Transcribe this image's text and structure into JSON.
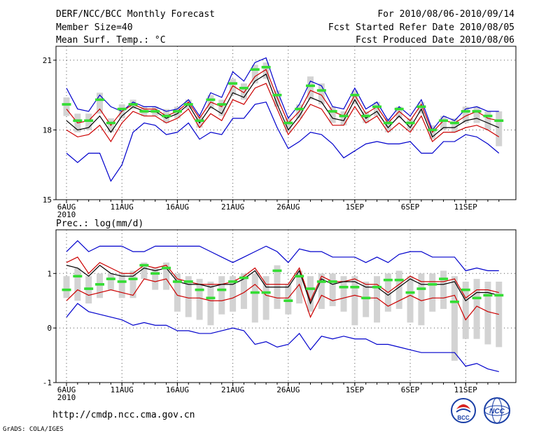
{
  "header": {
    "title": "DERF/NCC/BCC Monthly Forecast",
    "member_size": "Member Size=40",
    "variable_1": "Mean Surf. Temp.: °C",
    "period": "For 2010/08/06-2010/09/14",
    "start_date": "Fcst Started Refer Date 2010/08/05",
    "produced_date": "Fcst Produced Date 2010/08/06"
  },
  "footer": {
    "url": "http://cmdp.ncc.cma.gov.cn",
    "credit": "GrADS: COLA/IGES",
    "logo_bcc": "BCC",
    "logo_ncc": "NCC"
  },
  "colors": {
    "max_min": "#0000cc",
    "spread": "#cc0000",
    "mean": "#000000",
    "median": "#33dd33",
    "box": "#d3d3d3"
  },
  "chart_data": [
    {
      "type": "box-line",
      "title": "Mean Surf. Temp.: °C",
      "x_ticks": [
        "6AUG",
        "11AUG",
        "16AUG",
        "21AUG",
        "26AUG",
        "1SEP",
        "6SEP",
        "11SEP"
      ],
      "x_tick_days": [
        0,
        5,
        10,
        15,
        20,
        26,
        31,
        36
      ],
      "x_sublabel": "2010",
      "y_ticks": [
        15,
        18,
        21
      ],
      "ylim": [
        15,
        21.6
      ],
      "series": [
        {
          "name": "max",
          "values": [
            19.8,
            18.9,
            18.8,
            19.5,
            19.0,
            18.8,
            19.2,
            19.0,
            19.0,
            18.8,
            18.9,
            19.3,
            18.6,
            19.6,
            19.4,
            20.5,
            20.1,
            20.9,
            21.1,
            19.7,
            18.5,
            19.1,
            20.1,
            19.9,
            19.0,
            18.9,
            19.8,
            18.9,
            19.2,
            18.4,
            19.0,
            18.6,
            19.3,
            18.0,
            18.6,
            18.4,
            18.9,
            19.0,
            18.8,
            18.8
          ]
        },
        {
          "name": "upper",
          "values": [
            18.9,
            18.3,
            18.4,
            18.9,
            18.2,
            18.8,
            19.1,
            18.9,
            18.9,
            18.6,
            18.8,
            19.2,
            18.5,
            19.2,
            19.0,
            19.9,
            19.6,
            20.3,
            20.6,
            19.4,
            18.3,
            18.8,
            19.7,
            19.5,
            18.8,
            18.6,
            19.5,
            18.7,
            19.0,
            18.3,
            18.8,
            18.4,
            19.1,
            17.9,
            18.4,
            18.3,
            18.6,
            18.8,
            18.5,
            18.4
          ]
        },
        {
          "name": "mean",
          "values": [
            18.4,
            18.0,
            18.1,
            18.6,
            17.9,
            18.6,
            19.0,
            18.8,
            18.8,
            18.5,
            18.7,
            19.1,
            18.3,
            19.0,
            18.7,
            19.6,
            19.4,
            20.1,
            20.4,
            19.1,
            18.0,
            18.6,
            19.4,
            19.2,
            18.5,
            18.4,
            19.3,
            18.5,
            18.8,
            18.1,
            18.6,
            18.1,
            18.9,
            17.7,
            18.1,
            18.1,
            18.4,
            18.5,
            18.3,
            18.1
          ]
        },
        {
          "name": "lower",
          "values": [
            18.0,
            17.7,
            17.8,
            18.2,
            17.5,
            18.3,
            18.8,
            18.6,
            18.6,
            18.3,
            18.5,
            18.9,
            18.1,
            18.7,
            18.4,
            19.3,
            19.1,
            19.8,
            20.0,
            18.9,
            17.8,
            18.4,
            19.1,
            18.9,
            18.2,
            18.2,
            19.0,
            18.3,
            18.6,
            17.9,
            18.3,
            17.9,
            18.6,
            17.5,
            17.9,
            17.9,
            18.1,
            18.2,
            18.0,
            17.7
          ]
        },
        {
          "name": "min",
          "values": [
            17.0,
            16.6,
            17.0,
            17.0,
            15.8,
            16.5,
            17.9,
            18.3,
            18.2,
            17.8,
            17.9,
            18.3,
            17.6,
            17.9,
            17.8,
            18.5,
            18.5,
            19.1,
            19.2,
            18.1,
            17.2,
            17.5,
            17.9,
            17.8,
            17.4,
            16.8,
            17.1,
            17.4,
            17.5,
            17.4,
            17.4,
            17.5,
            17.0,
            17.0,
            17.5,
            17.5,
            17.8,
            17.7,
            17.4,
            17.0
          ]
        },
        {
          "name": "median",
          "values": [
            19.1,
            18.4,
            18.4,
            19.3,
            18.3,
            18.9,
            19.1,
            18.8,
            18.8,
            18.6,
            18.8,
            19.1,
            18.4,
            19.3,
            19.1,
            20.0,
            19.8,
            20.6,
            20.7,
            19.5,
            18.3,
            18.9,
            19.9,
            19.7,
            18.8,
            18.6,
            19.5,
            18.6,
            19.0,
            18.3,
            18.9,
            18.3,
            19.0,
            18.0,
            18.4,
            18.3,
            18.8,
            18.8,
            18.6,
            18.4
          ]
        },
        {
          "name": "box_top",
          "values": [
            19.4,
            18.7,
            18.7,
            19.6,
            18.5,
            19.1,
            19.3,
            19.0,
            19.0,
            18.9,
            19.0,
            19.3,
            18.6,
            19.5,
            19.3,
            20.2,
            20.0,
            20.8,
            20.9,
            19.7,
            18.5,
            19.1,
            20.3,
            20.0,
            19.0,
            18.8,
            19.7,
            18.8,
            19.2,
            18.5,
            19.0,
            18.5,
            19.2,
            18.2,
            18.6,
            18.5,
            19.0,
            19.0,
            18.8,
            18.8
          ]
        },
        {
          "name": "box_bottom",
          "values": [
            18.6,
            17.9,
            18.0,
            18.7,
            17.9,
            18.5,
            18.9,
            18.6,
            18.6,
            18.3,
            18.5,
            18.9,
            18.1,
            18.9,
            18.6,
            19.5,
            19.3,
            20.0,
            20.2,
            19.0,
            17.9,
            18.5,
            19.3,
            19.1,
            18.3,
            18.2,
            19.1,
            18.3,
            18.6,
            17.9,
            18.5,
            18.0,
            18.7,
            17.6,
            18.0,
            17.9,
            18.3,
            18.3,
            18.0,
            17.3
          ]
        }
      ]
    },
    {
      "type": "box-line",
      "title": "Prec.: log(mm/d)",
      "x_ticks": [
        "6AUG",
        "11AUG",
        "16AUG",
        "21AUG",
        "26AUG",
        "1SEP",
        "6SEP",
        "11SEP"
      ],
      "x_tick_days": [
        0,
        5,
        10,
        15,
        20,
        26,
        31,
        36
      ],
      "x_sublabel": "2010",
      "y_ticks": [
        -1,
        0,
        1
      ],
      "ylim": [
        -1,
        1.8
      ],
      "series": [
        {
          "name": "max",
          "values": [
            1.4,
            1.6,
            1.4,
            1.5,
            1.5,
            1.5,
            1.4,
            1.4,
            1.5,
            1.5,
            1.5,
            1.5,
            1.5,
            1.4,
            1.3,
            1.2,
            1.3,
            1.4,
            1.5,
            1.4,
            1.2,
            1.45,
            1.4,
            1.4,
            1.3,
            1.3,
            1.3,
            1.2,
            1.3,
            1.2,
            1.35,
            1.4,
            1.4,
            1.3,
            1.3,
            1.3,
            1.05,
            1.1,
            1.05,
            1.05
          ]
        },
        {
          "name": "upper",
          "values": [
            1.2,
            1.3,
            1.0,
            1.2,
            1.1,
            1.0,
            1.0,
            1.15,
            1.1,
            1.15,
            0.9,
            0.85,
            0.8,
            0.8,
            0.8,
            0.85,
            0.95,
            1.1,
            0.8,
            0.8,
            0.8,
            1.1,
            0.5,
            0.95,
            0.85,
            0.85,
            0.9,
            0.8,
            0.8,
            0.65,
            0.8,
            0.95,
            0.85,
            0.85,
            0.85,
            0.9,
            0.55,
            0.7,
            0.7,
            0.65
          ]
        },
        {
          "name": "mean",
          "values": [
            1.15,
            1.1,
            0.95,
            1.15,
            1.0,
            0.95,
            0.95,
            1.1,
            1.05,
            1.1,
            0.85,
            0.8,
            0.8,
            0.75,
            0.8,
            0.8,
            0.9,
            1.05,
            0.75,
            0.75,
            0.75,
            1.05,
            0.45,
            0.9,
            0.8,
            0.85,
            0.85,
            0.75,
            0.75,
            0.6,
            0.75,
            0.9,
            0.8,
            0.8,
            0.8,
            0.85,
            0.5,
            0.65,
            0.65,
            0.6
          ]
        },
        {
          "name": "lower",
          "values": [
            0.5,
            0.7,
            0.6,
            0.65,
            0.7,
            0.65,
            0.6,
            0.9,
            0.85,
            0.9,
            0.6,
            0.55,
            0.55,
            0.5,
            0.5,
            0.55,
            0.65,
            0.8,
            0.6,
            0.55,
            0.55,
            0.8,
            0.2,
            0.6,
            0.5,
            0.55,
            0.6,
            0.55,
            0.55,
            0.4,
            0.5,
            0.6,
            0.5,
            0.55,
            0.55,
            0.6,
            0.15,
            0.4,
            0.3,
            0.25
          ]
        },
        {
          "name": "min",
          "values": [
            0.2,
            0.45,
            0.3,
            0.25,
            0.2,
            0.15,
            0.05,
            0.1,
            0.05,
            0.05,
            -0.05,
            -0.05,
            -0.1,
            -0.1,
            -0.05,
            0.0,
            -0.05,
            -0.3,
            -0.25,
            -0.35,
            -0.3,
            -0.1,
            -0.4,
            -0.15,
            -0.2,
            -0.15,
            -0.2,
            -0.2,
            -0.3,
            -0.3,
            -0.35,
            -0.4,
            -0.45,
            -0.45,
            -0.45,
            -0.45,
            -0.7,
            -0.65,
            -0.75,
            -0.8
          ]
        },
        {
          "name": "median",
          "values": [
            0.7,
            0.95,
            0.72,
            0.8,
            0.9,
            0.85,
            0.9,
            1.15,
            1.0,
            1.1,
            0.85,
            0.85,
            0.7,
            0.55,
            0.7,
            0.85,
            0.92,
            0.65,
            0.65,
            1.05,
            0.5,
            0.95,
            0.72,
            0.85,
            0.85,
            0.75,
            0.75,
            0.55,
            0.75,
            0.88,
            0.88,
            0.65,
            0.72,
            0.8,
            0.9,
            0.48,
            0.7,
            0.55,
            0.6,
            0.6
          ]
        },
        {
          "name": "box_top",
          "values": [
            0.95,
            1.1,
            0.95,
            1.0,
            1.0,
            1.0,
            1.05,
            1.2,
            1.1,
            1.2,
            1.0,
            0.95,
            0.9,
            0.85,
            0.95,
            0.95,
            1.0,
            1.0,
            0.95,
            1.15,
            0.8,
            1.05,
            0.95,
            1.0,
            1.0,
            0.95,
            0.95,
            0.85,
            0.95,
            1.0,
            1.05,
            0.95,
            1.0,
            1.0,
            1.05,
            0.95,
            0.85,
            0.9,
            0.85,
            0.85
          ]
        },
        {
          "name": "box_bottom",
          "values": [
            0.55,
            0.5,
            0.45,
            0.55,
            0.7,
            0.55,
            0.55,
            0.9,
            0.7,
            0.7,
            0.3,
            0.2,
            0.15,
            0.05,
            0.25,
            0.3,
            0.35,
            0.1,
            0.15,
            0.35,
            0.25,
            0.45,
            0.3,
            0.35,
            0.4,
            0.3,
            0.05,
            0.2,
            0.1,
            0.3,
            0.35,
            0.1,
            0.05,
            0.3,
            0.35,
            -0.6,
            -0.2,
            -0.2,
            -0.3,
            -0.35
          ]
        }
      ]
    }
  ]
}
